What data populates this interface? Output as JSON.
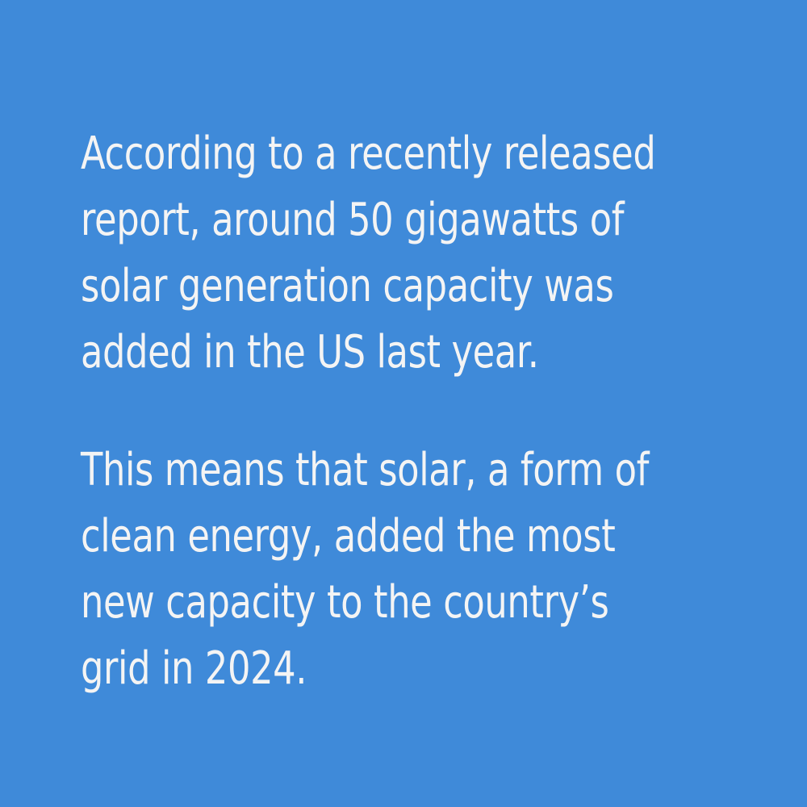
{
  "colors": {
    "background": "#3f8ad9",
    "text": "#f4f4f4"
  },
  "paragraphs": [
    {
      "lines": [
        "According to a recently released",
        "report, around 50 gigawatts of",
        "solar generation capacity was",
        "added in the US last year."
      ]
    },
    {
      "lines": [
        "This means that solar, a form of",
        "clean energy, added the most",
        "new capacity to the country’s",
        "grid in 2024."
      ]
    }
  ]
}
